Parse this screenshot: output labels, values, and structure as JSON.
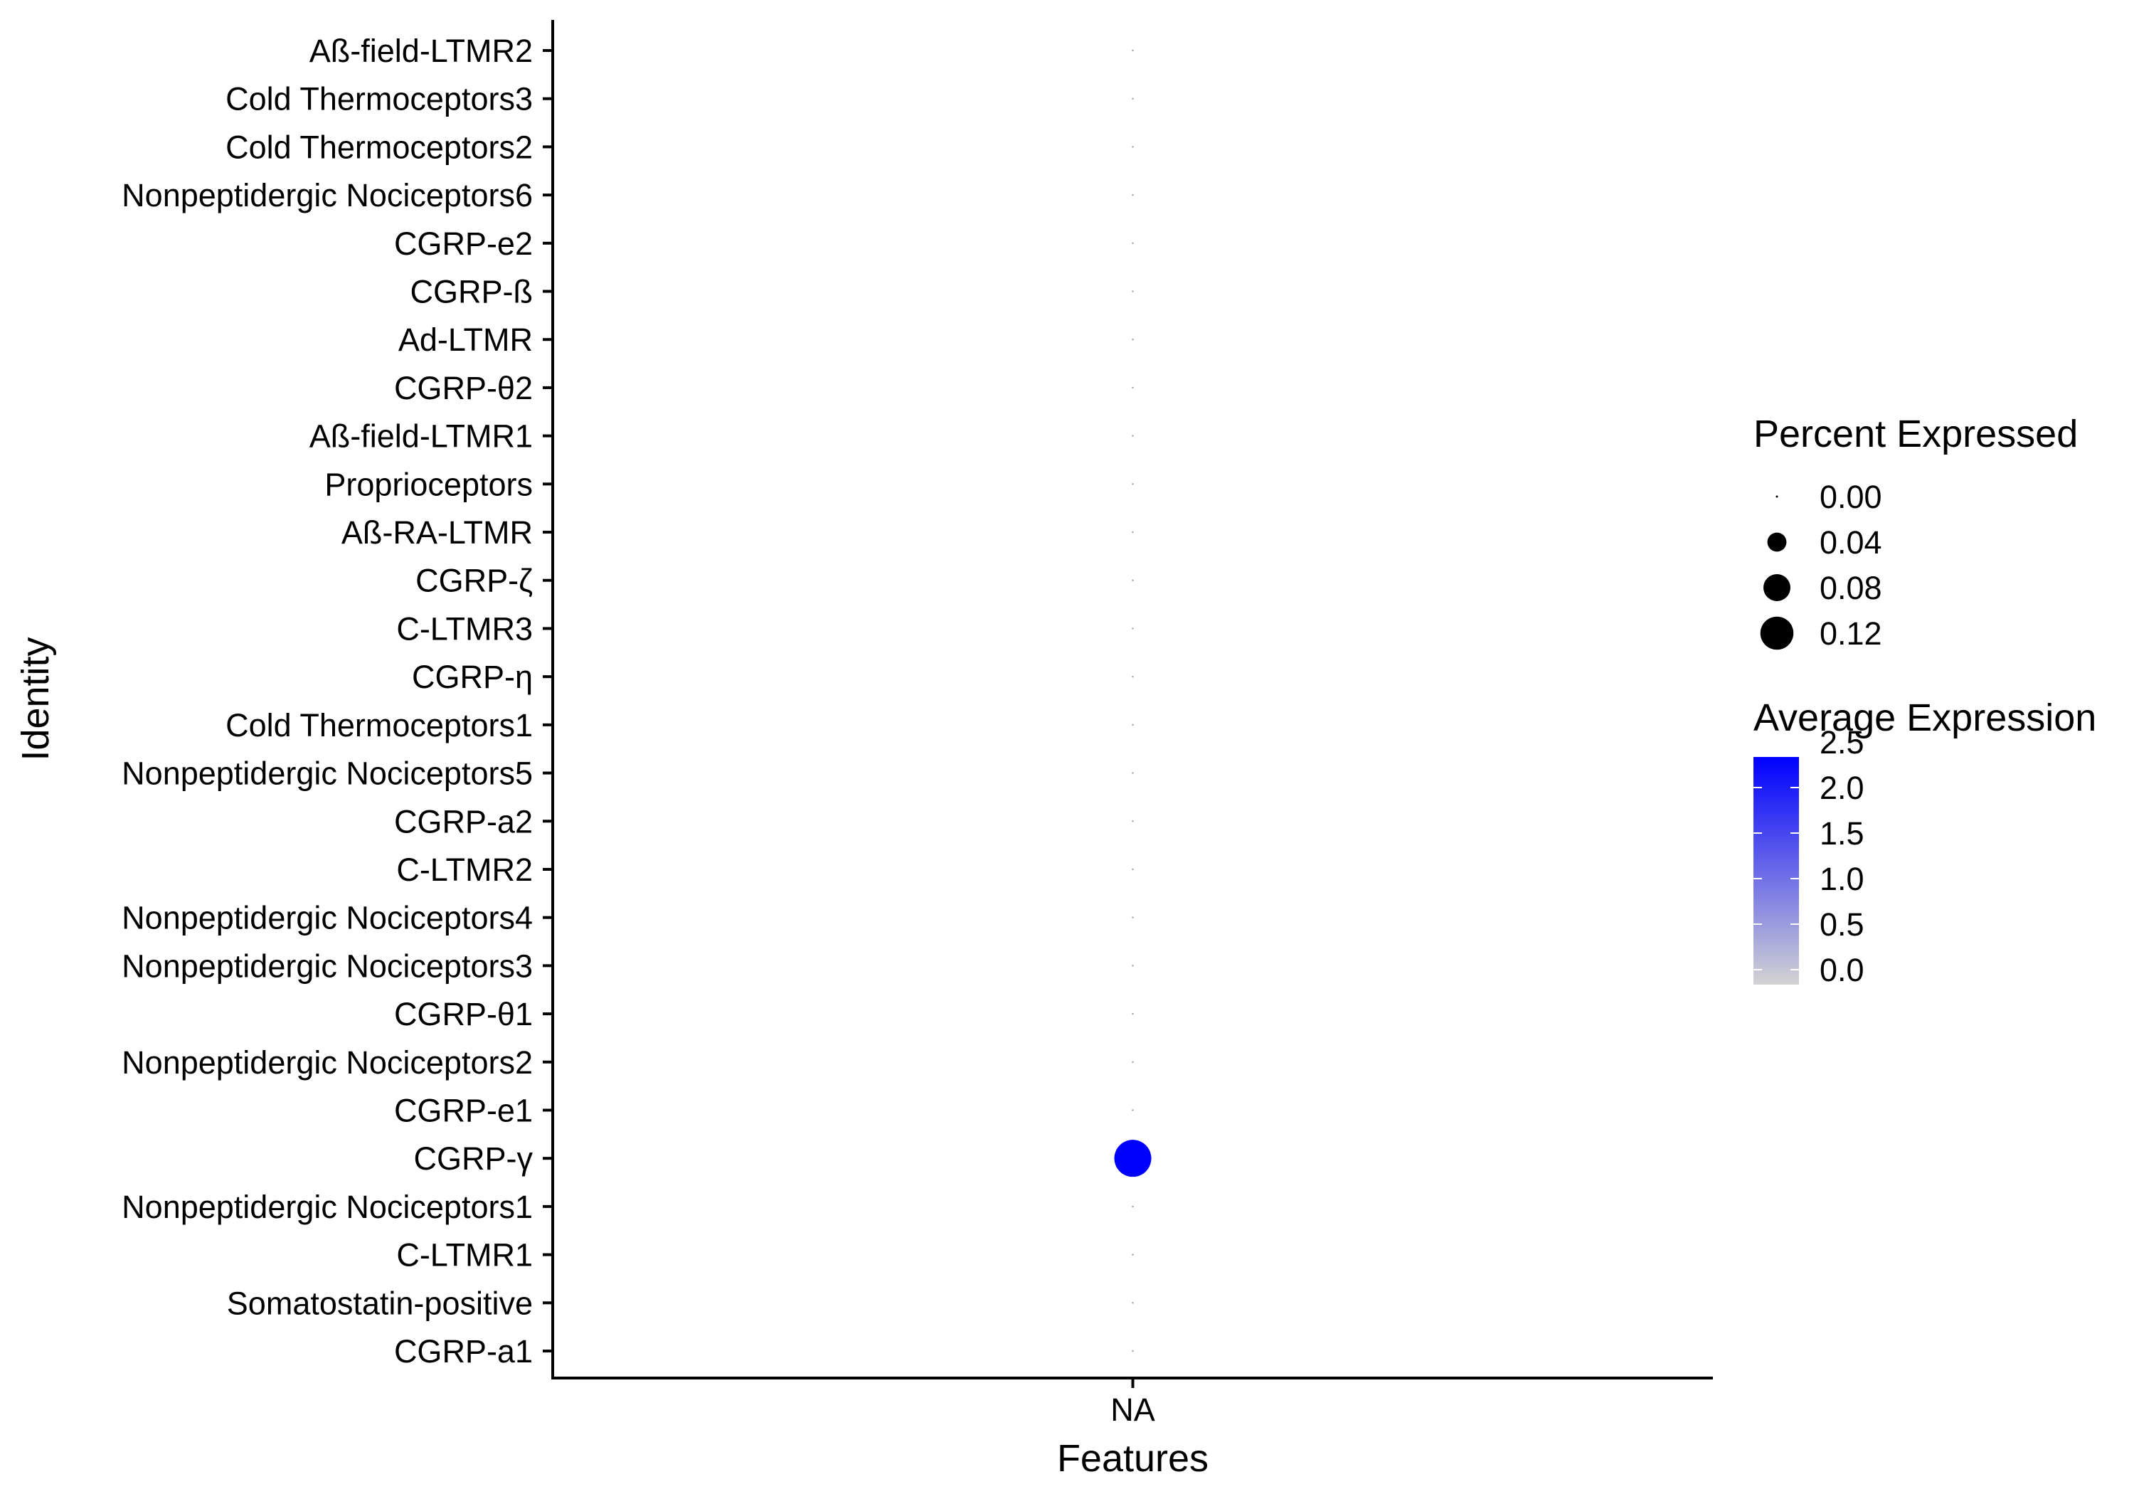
{
  "chart_data": {
    "type": "scatter",
    "subtype": "dot-plot",
    "xlabel": "Features",
    "ylabel": "Identity",
    "x_categories": [
      "NA"
    ],
    "y_categories": [
      "CGRP-a1",
      "Somatostatin-positive",
      "C-LTMR1",
      "Nonpeptidergic Nociceptors1",
      "CGRP-γ",
      "CGRP-e1",
      "Nonpeptidergic Nociceptors2",
      "CGRP-θ1",
      "Nonpeptidergic Nociceptors3",
      "Nonpeptidergic Nociceptors4",
      "C-LTMR2",
      "CGRP-a2",
      "Nonpeptidergic Nociceptors5",
      "Cold Thermoceptors1",
      "CGRP-η",
      "C-LTMR3",
      "CGRP-ζ",
      "Aß-RA-LTMR",
      "Proprioceptors",
      "Aß-field-LTMR1",
      "CGRP-θ2",
      "Ad-LTMR",
      "CGRP-ß",
      "CGRP-e2",
      "Nonpeptidergic Nociceptors6",
      "Cold Thermoceptors2",
      "Cold Thermoceptors3",
      "Aß-field-LTMR2"
    ],
    "points": [
      {
        "feature": "NA",
        "identity": "CGRP-a1",
        "pct_exp": 0,
        "avg_exp": 0
      },
      {
        "feature": "NA",
        "identity": "Somatostatin-positive",
        "pct_exp": 0,
        "avg_exp": 0
      },
      {
        "feature": "NA",
        "identity": "C-LTMR1",
        "pct_exp": 0,
        "avg_exp": 0
      },
      {
        "feature": "NA",
        "identity": "Nonpeptidergic Nociceptors1",
        "pct_exp": 0,
        "avg_exp": 0
      },
      {
        "feature": "NA",
        "identity": "CGRP-γ",
        "pct_exp": 0.15,
        "avg_exp": 2.5
      },
      {
        "feature": "NA",
        "identity": "CGRP-e1",
        "pct_exp": 0,
        "avg_exp": 0
      },
      {
        "feature": "NA",
        "identity": "Nonpeptidergic Nociceptors2",
        "pct_exp": 0,
        "avg_exp": 0
      },
      {
        "feature": "NA",
        "identity": "CGRP-θ1",
        "pct_exp": 0,
        "avg_exp": 0
      },
      {
        "feature": "NA",
        "identity": "Nonpeptidergic Nociceptors3",
        "pct_exp": 0,
        "avg_exp": 0
      },
      {
        "feature": "NA",
        "identity": "Nonpeptidergic Nociceptors4",
        "pct_exp": 0,
        "avg_exp": 0
      },
      {
        "feature": "NA",
        "identity": "C-LTMR2",
        "pct_exp": 0,
        "avg_exp": 0
      },
      {
        "feature": "NA",
        "identity": "CGRP-a2",
        "pct_exp": 0,
        "avg_exp": 0
      },
      {
        "feature": "NA",
        "identity": "Nonpeptidergic Nociceptors5",
        "pct_exp": 0,
        "avg_exp": 0
      },
      {
        "feature": "NA",
        "identity": "Cold Thermoceptors1",
        "pct_exp": 0,
        "avg_exp": 0
      },
      {
        "feature": "NA",
        "identity": "CGRP-η",
        "pct_exp": 0,
        "avg_exp": 0
      },
      {
        "feature": "NA",
        "identity": "C-LTMR3",
        "pct_exp": 0,
        "avg_exp": 0
      },
      {
        "feature": "NA",
        "identity": "CGRP-ζ",
        "pct_exp": 0,
        "avg_exp": 0
      },
      {
        "feature": "NA",
        "identity": "Aß-RA-LTMR",
        "pct_exp": 0,
        "avg_exp": 0
      },
      {
        "feature": "NA",
        "identity": "Proprioceptors",
        "pct_exp": 0,
        "avg_exp": 0
      },
      {
        "feature": "NA",
        "identity": "Aß-field-LTMR1",
        "pct_exp": 0,
        "avg_exp": 0
      },
      {
        "feature": "NA",
        "identity": "CGRP-θ2",
        "pct_exp": 0,
        "avg_exp": 0
      },
      {
        "feature": "NA",
        "identity": "Ad-LTMR",
        "pct_exp": 0,
        "avg_exp": 0
      },
      {
        "feature": "NA",
        "identity": "CGRP-ß",
        "pct_exp": 0,
        "avg_exp": 0
      },
      {
        "feature": "NA",
        "identity": "CGRP-e2",
        "pct_exp": 0,
        "avg_exp": 0
      },
      {
        "feature": "NA",
        "identity": "Nonpeptidergic Nociceptors6",
        "pct_exp": 0,
        "avg_exp": 0
      },
      {
        "feature": "NA",
        "identity": "Cold Thermoceptors2",
        "pct_exp": 0,
        "avg_exp": 0
      },
      {
        "feature": "NA",
        "identity": "Cold Thermoceptors3",
        "pct_exp": 0,
        "avg_exp": 0
      },
      {
        "feature": "NA",
        "identity": "Aß-field-LTMR2",
        "pct_exp": 0,
        "avg_exp": 0
      }
    ],
    "size_legend": {
      "title": "Percent Expressed",
      "breaks": [
        0.0,
        0.04,
        0.08,
        0.12
      ],
      "labels": [
        "0.00",
        "0.04",
        "0.08",
        "0.12"
      ]
    },
    "color_legend": {
      "title": "Average Expression",
      "range": [
        0,
        2.5
      ],
      "breaks": [
        0.0,
        0.5,
        1.0,
        1.5,
        2.0,
        2.5
      ],
      "labels": [
        "0.0",
        "0.5",
        "1.0",
        "1.5",
        "2.0",
        "2.5"
      ],
      "low_color": "#d3d3d3",
      "high_color": "#0000ff"
    },
    "grid": false,
    "legend_position": "right"
  }
}
